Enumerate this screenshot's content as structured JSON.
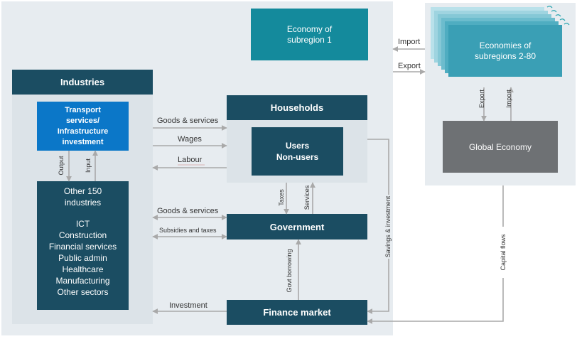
{
  "boxes": {
    "industries": "Industries",
    "transport": [
      "Transport",
      "services/",
      "Infrastructure",
      "investment"
    ],
    "other_industries": [
      "Other 150",
      "industries"
    ],
    "sectors": [
      "ICT",
      "Construction",
      "Financial services",
      "Public admin",
      "Healthcare",
      "Manufacturing",
      "Other sectors"
    ],
    "households": "Households",
    "users": [
      "Users",
      "Non-users"
    ],
    "government": "Government",
    "finance_market": "Finance market",
    "subregion1": [
      "Economy of",
      "subregion 1"
    ],
    "subregions_2_80": [
      "Economies of",
      "subregions 2-80"
    ],
    "global_economy": "Global Economy"
  },
  "flows": {
    "goods_services_households": "Goods & services",
    "wages": "Wages",
    "labour": "Labour",
    "goods_services_government": "Goods & services",
    "subsidies_taxes": "Subsidies and taxes",
    "investment": "Investment",
    "output": "Output",
    "input": "Input",
    "taxes": "Taxes",
    "services": "Services",
    "govt_borrowing": "Govt borrowing",
    "savings_investment": "Savings & investment",
    "capital_flows": "Capital flows",
    "import_sub": "Import",
    "export_sub": "Export",
    "export_global": "Export",
    "import_global": "Import"
  },
  "colors": {
    "panel": "#e7ecf0",
    "navy": "#1b4d62",
    "teal": "#148a9c",
    "blue": "#0b77c8",
    "grey": "#6e7174",
    "arrow": "#a9a9a9"
  }
}
